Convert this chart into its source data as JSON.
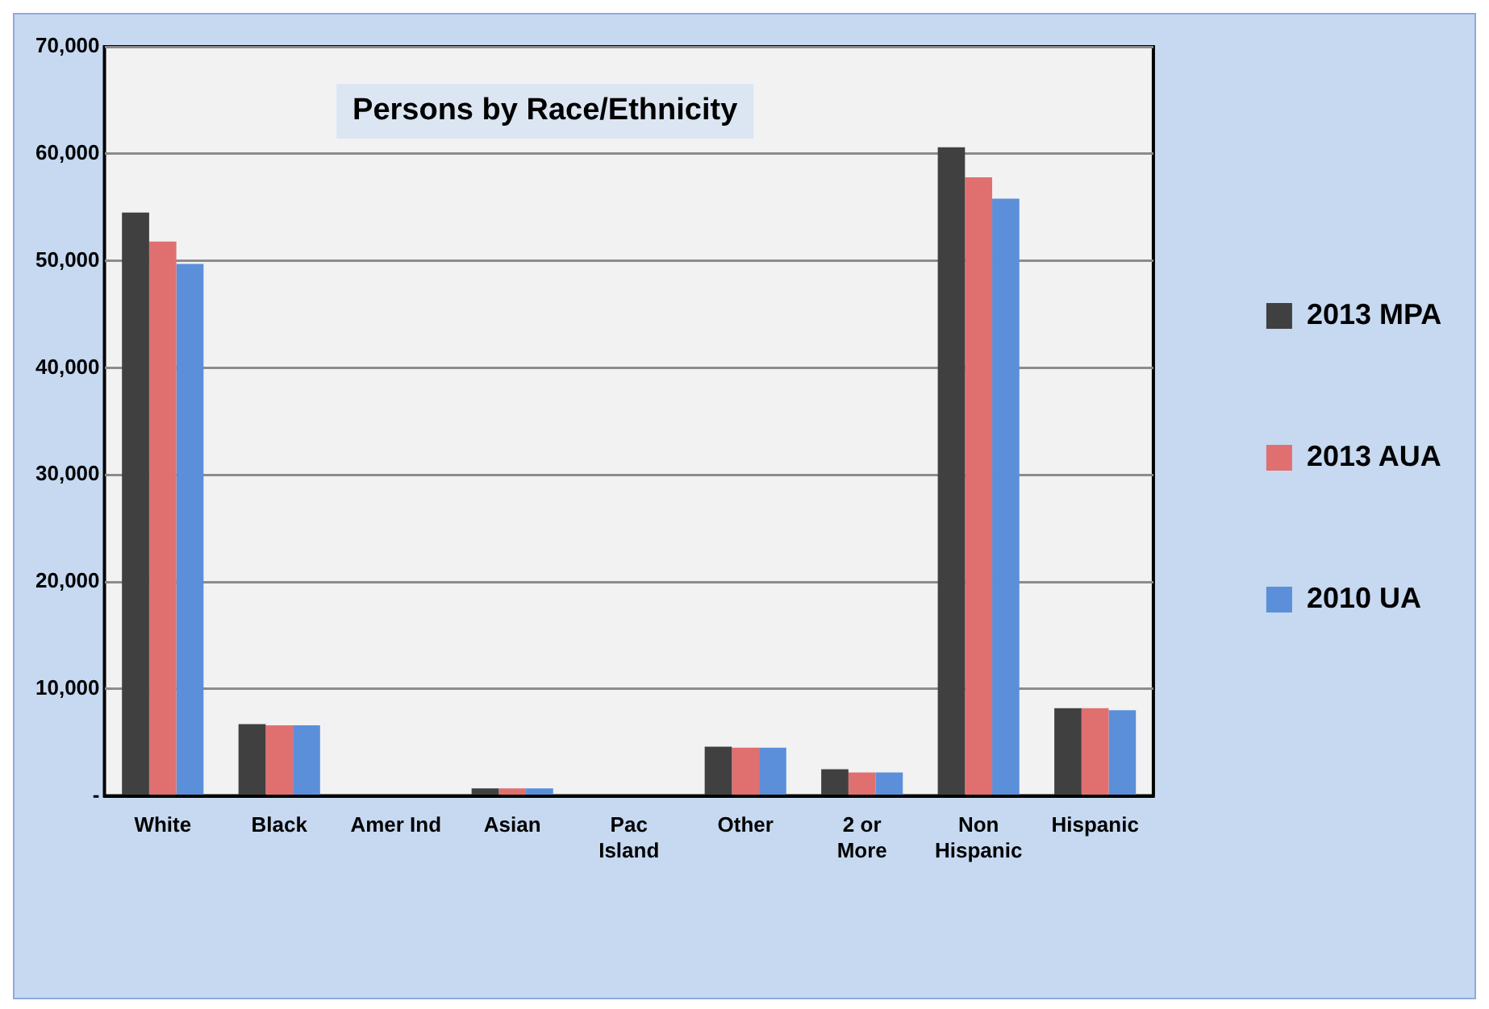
{
  "chart_data": {
    "type": "bar",
    "title": "Persons by Race/Ethnicity",
    "categories": [
      "White",
      "Black",
      "Amer Ind",
      "Asian",
      "Pac Island",
      "Other",
      "2 or More",
      "Non Hispanic",
      "Hispanic"
    ],
    "series": [
      {
        "name": "2013 MPA",
        "color": "#404040",
        "values": [
          54500,
          6700,
          0,
          700,
          0,
          4600,
          2500,
          60600,
          8200
        ]
      },
      {
        "name": "2013 AUA",
        "color": "#e07070",
        "values": [
          51800,
          6600,
          0,
          700,
          0,
          4500,
          2200,
          57800,
          8200
        ]
      },
      {
        "name": "2010 UA",
        "color": "#5b8fd9",
        "values": [
          49700,
          6600,
          0,
          700,
          0,
          4500,
          2200,
          55800,
          8000
        ]
      }
    ],
    "ylim": [
      0,
      70000
    ],
    "yticks": [
      {
        "value": 0,
        "label": "-"
      },
      {
        "value": 10000,
        "label": "10,000"
      },
      {
        "value": 20000,
        "label": "20,000"
      },
      {
        "value": 30000,
        "label": "30,000"
      },
      {
        "value": 40000,
        "label": "40,000"
      },
      {
        "value": 50000,
        "label": "50,000"
      },
      {
        "value": 60000,
        "label": "60,000"
      },
      {
        "value": 70000,
        "label": "70,000"
      }
    ],
    "grid": "y",
    "legend": "right"
  }
}
